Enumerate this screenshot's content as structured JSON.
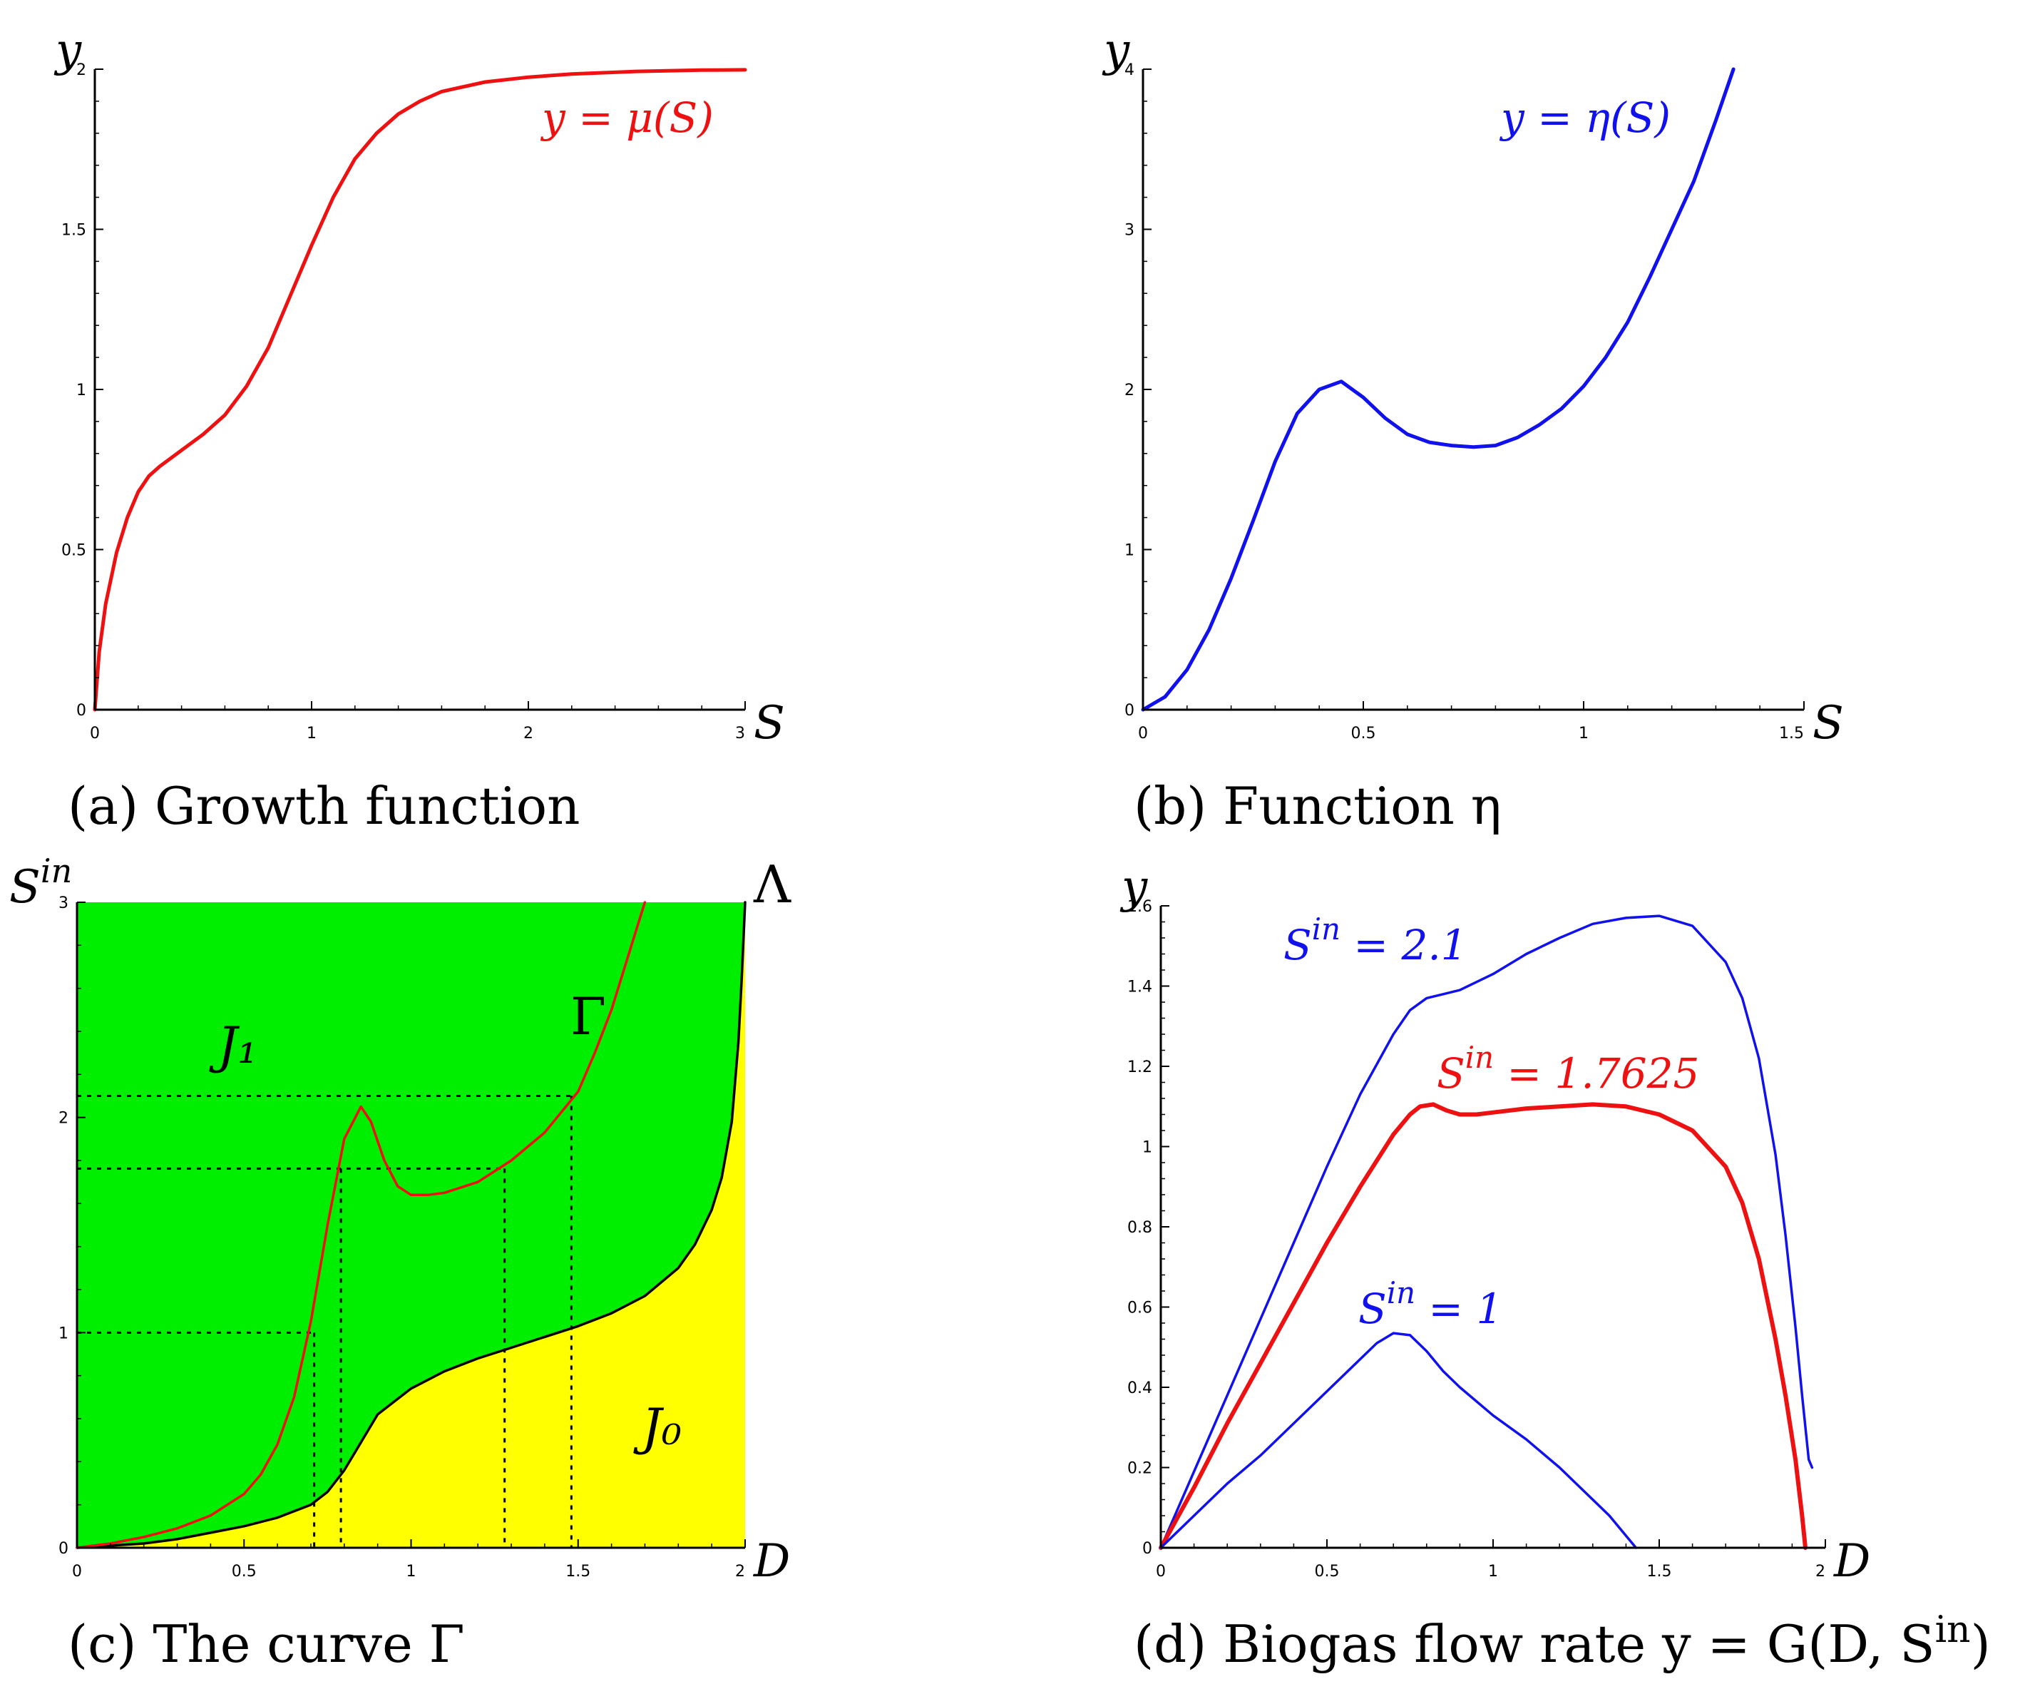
{
  "colors": {
    "red": "#ee1111",
    "blue": "#1111ee",
    "green": "#00ee00",
    "yellow": "#ffff00",
    "black": "#000000"
  },
  "chart_data": [
    {
      "id": "a",
      "type": "line",
      "caption": "(a) Growth function",
      "xlabel": "S",
      "ylabel": "y",
      "xlim": [
        0,
        3
      ],
      "ylim": [
        0,
        2
      ],
      "xticks": [
        "0",
        "1",
        "2",
        "3"
      ],
      "yticks": [
        "0",
        "0.5",
        "1",
        "1.5",
        "2"
      ],
      "series": [
        {
          "name": "y = μ(S)",
          "color": "red",
          "x": [
            0,
            0.02,
            0.05,
            0.1,
            0.15,
            0.2,
            0.25,
            0.3,
            0.4,
            0.5,
            0.6,
            0.7,
            0.8,
            0.9,
            1.0,
            1.1,
            1.2,
            1.3,
            1.4,
            1.5,
            1.6,
            1.8,
            2.0,
            2.2,
            2.5,
            2.8,
            3.0
          ],
          "y": [
            0,
            0.18,
            0.33,
            0.49,
            0.6,
            0.68,
            0.73,
            0.76,
            0.81,
            0.86,
            0.92,
            1.01,
            1.13,
            1.29,
            1.45,
            1.6,
            1.72,
            1.8,
            1.86,
            1.9,
            1.93,
            1.96,
            1.975,
            1.985,
            1.993,
            1.997,
            1.998
          ]
        }
      ]
    },
    {
      "id": "b",
      "type": "line",
      "caption": "(b) Function η",
      "xlabel": "S",
      "ylabel": "y",
      "xlim": [
        0,
        1.5
      ],
      "ylim": [
        0,
        4
      ],
      "xticks": [
        "0",
        "0.5",
        "1",
        "1.5"
      ],
      "yticks": [
        "0",
        "1",
        "2",
        "3",
        "4"
      ],
      "series": [
        {
          "name": "y = η(S)",
          "color": "blue",
          "x": [
            0,
            0.05,
            0.1,
            0.15,
            0.2,
            0.25,
            0.3,
            0.35,
            0.4,
            0.45,
            0.5,
            0.55,
            0.6,
            0.65,
            0.7,
            0.75,
            0.8,
            0.85,
            0.9,
            0.95,
            1.0,
            1.05,
            1.1,
            1.15,
            1.2,
            1.25,
            1.3,
            1.34
          ],
          "y": [
            0,
            0.08,
            0.25,
            0.5,
            0.82,
            1.18,
            1.55,
            1.85,
            2.0,
            2.05,
            1.95,
            1.82,
            1.72,
            1.67,
            1.65,
            1.64,
            1.65,
            1.7,
            1.78,
            1.88,
            2.02,
            2.2,
            2.42,
            2.7,
            3.0,
            3.3,
            3.68,
            4.0
          ]
        }
      ]
    },
    {
      "id": "c",
      "type": "area",
      "caption": "(c) The curve Γ",
      "xlabel": "D",
      "ylabel": "S",
      "ylabel_sup": "in",
      "xlim": [
        0,
        2
      ],
      "ylim": [
        0,
        3
      ],
      "xticks": [
        "0",
        "0.5",
        "1",
        "1.5",
        "2"
      ],
      "yticks": [
        "0",
        "1",
        "2",
        "3"
      ],
      "regions": {
        "upper": "J₁",
        "lower": "J₀",
        "curve_label": "Λ"
      },
      "series": [
        {
          "name": "Λ",
          "color": "black",
          "x": [
            0,
            0.1,
            0.2,
            0.3,
            0.4,
            0.5,
            0.6,
            0.7,
            0.75,
            0.8,
            0.9,
            1.0,
            1.1,
            1.2,
            1.3,
            1.4,
            1.5,
            1.6,
            1.7,
            1.8,
            1.85,
            1.9,
            1.93,
            1.96,
            1.98,
            1.99,
            2.0
          ],
          "y": [
            0,
            0.01,
            0.02,
            0.04,
            0.07,
            0.1,
            0.14,
            0.2,
            0.26,
            0.36,
            0.62,
            0.74,
            0.82,
            0.88,
            0.93,
            0.98,
            1.03,
            1.09,
            1.17,
            1.3,
            1.41,
            1.57,
            1.72,
            1.98,
            2.35,
            2.65,
            3.0
          ]
        },
        {
          "name": "Γ",
          "color": "red",
          "x": [
            0,
            0.1,
            0.2,
            0.3,
            0.4,
            0.5,
            0.55,
            0.6,
            0.65,
            0.7,
            0.75,
            0.8,
            0.85,
            0.88,
            0.92,
            0.96,
            1.0,
            1.05,
            1.1,
            1.2,
            1.3,
            1.4,
            1.5,
            1.55,
            1.6,
            1.65,
            1.7
          ],
          "y": [
            0,
            0.02,
            0.05,
            0.09,
            0.15,
            0.25,
            0.34,
            0.48,
            0.7,
            1.05,
            1.5,
            1.9,
            2.05,
            1.98,
            1.8,
            1.68,
            1.64,
            1.64,
            1.65,
            1.7,
            1.8,
            1.93,
            2.12,
            2.3,
            2.5,
            2.75,
            3.0
          ]
        }
      ],
      "dotted_guides": [
        {
          "level": 1.0,
          "d": [
            0.71
          ]
        },
        {
          "level": 1.7625,
          "d": [
            0.79,
            1.28
          ]
        },
        {
          "level": 2.1,
          "d": [
            1.48
          ]
        }
      ]
    },
    {
      "id": "d",
      "type": "line",
      "caption": "(d) Biogas flow rate y = G(D, S",
      "caption_sup": "in",
      "caption_end": ")",
      "xlabel": "D",
      "ylabel": "y",
      "xlim": [
        0,
        2
      ],
      "ylim": [
        0,
        1.6
      ],
      "xticks": [
        "0",
        "0.5",
        "1",
        "1.5",
        "2"
      ],
      "yticks": [
        "0",
        "0.2",
        "0.4",
        "0.6",
        "0.8",
        "1",
        "1.2",
        "1.4",
        "1.6"
      ],
      "series": [
        {
          "name": "S = 2.1",
          "label_main": "S",
          "label_sup": "in",
          "label_rest": " = 2.1",
          "color": "blue",
          "x": [
            0,
            0.1,
            0.2,
            0.3,
            0.4,
            0.5,
            0.6,
            0.7,
            0.75,
            0.8,
            0.85,
            0.9,
            1.0,
            1.1,
            1.2,
            1.3,
            1.4,
            1.5,
            1.6,
            1.7,
            1.75,
            1.8,
            1.85,
            1.88,
            1.91,
            1.93,
            1.95,
            1.96
          ],
          "y": [
            0,
            0.19,
            0.38,
            0.57,
            0.76,
            0.95,
            1.13,
            1.28,
            1.34,
            1.37,
            1.38,
            1.39,
            1.43,
            1.48,
            1.52,
            1.555,
            1.57,
            1.575,
            1.55,
            1.46,
            1.37,
            1.22,
            0.98,
            0.78,
            0.55,
            0.38,
            0.22,
            0.2
          ]
        },
        {
          "name": "S = 1.7625",
          "label_main": "S",
          "label_sup": "in",
          "label_rest": " = 1.7625",
          "color": "red",
          "x": [
            0,
            0.1,
            0.2,
            0.3,
            0.4,
            0.5,
            0.6,
            0.7,
            0.75,
            0.78,
            0.82,
            0.86,
            0.9,
            0.95,
            1.0,
            1.1,
            1.2,
            1.3,
            1.4,
            1.5,
            1.6,
            1.7,
            1.75,
            1.8,
            1.85,
            1.88,
            1.91,
            1.93,
            1.94
          ],
          "y": [
            0,
            0.15,
            0.31,
            0.46,
            0.61,
            0.76,
            0.9,
            1.03,
            1.08,
            1.1,
            1.105,
            1.09,
            1.08,
            1.08,
            1.085,
            1.095,
            1.1,
            1.105,
            1.1,
            1.08,
            1.04,
            0.95,
            0.86,
            0.72,
            0.52,
            0.38,
            0.22,
            0.08,
            0
          ]
        },
        {
          "name": "S = 1",
          "label_main": "S",
          "label_sup": "in",
          "label_rest": " = 1",
          "color": "blue",
          "x": [
            0,
            0.1,
            0.2,
            0.3,
            0.4,
            0.5,
            0.6,
            0.65,
            0.7,
            0.75,
            0.8,
            0.85,
            0.9,
            1.0,
            1.1,
            1.2,
            1.3,
            1.35,
            1.4,
            1.43
          ],
          "y": [
            0,
            0.08,
            0.16,
            0.23,
            0.31,
            0.39,
            0.47,
            0.51,
            0.535,
            0.53,
            0.49,
            0.44,
            0.4,
            0.33,
            0.27,
            0.2,
            0.12,
            0.08,
            0.03,
            0
          ]
        }
      ]
    }
  ]
}
